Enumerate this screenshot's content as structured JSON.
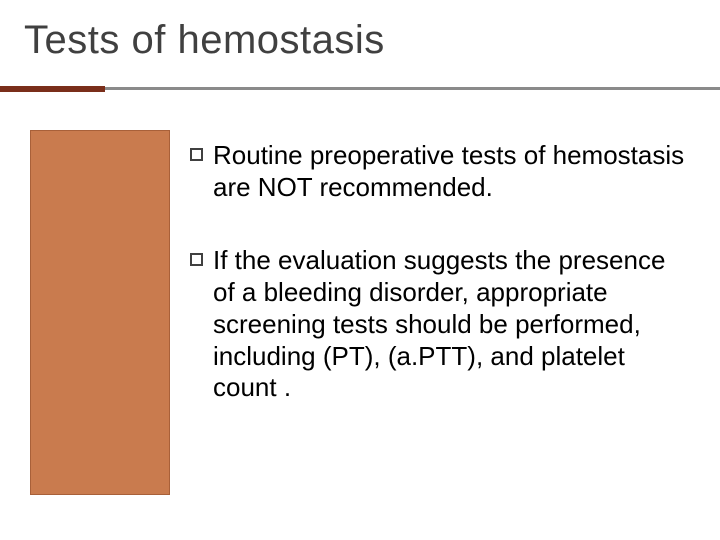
{
  "slide": {
    "title": "Tests of hemostasis",
    "bullets": [
      {
        "text": "Routine preoperative tests of hemostasis are NOT recommended."
      },
      {
        "text": "If the evaluation suggests the presence of a bleeding disorder, appropriate screening tests should be performed, including  (PT), (a.PTT), and platelet count ."
      }
    ]
  },
  "style": {
    "title_color": "#404040",
    "title_fontsize": 40,
    "body_fontsize": 26,
    "body_color": "#000000",
    "accent_bar_color": "#7a2e1a",
    "rule_color": "#8a8a8a",
    "sidebar_fill": "#c97b4e",
    "sidebar_border": "#a86039",
    "background": "#ffffff",
    "bullet_border": "#404040"
  }
}
